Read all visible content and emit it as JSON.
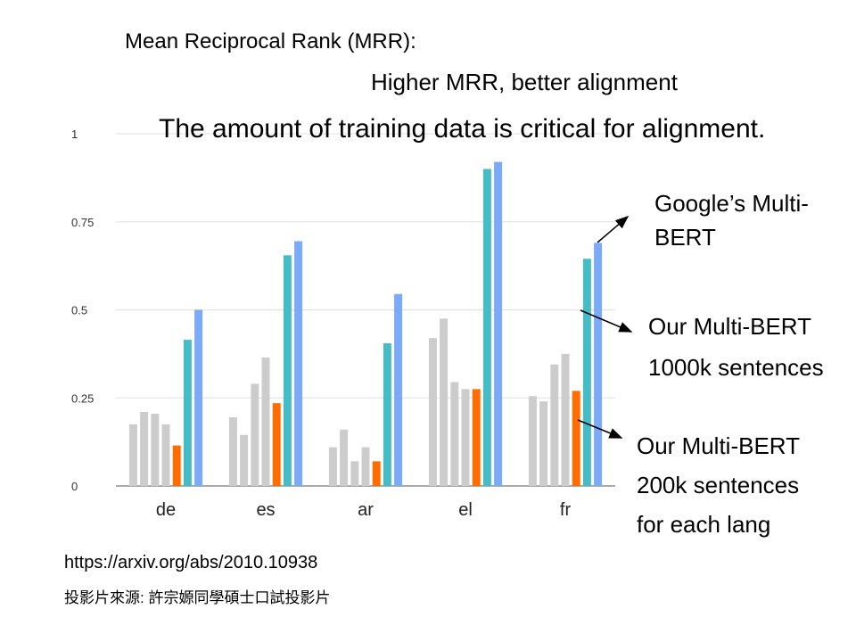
{
  "title": "Mean Reciprocal Rank (MRR):",
  "subtitle": "Higher MRR, better alignment",
  "headline": "The amount of training data is critical for alignment.",
  "annotations": {
    "google": [
      "Google’s Multi-",
      "BERT"
    ],
    "our_1000k": [
      "Our Multi-BERT",
      "1000k sentences"
    ],
    "our_200k": [
      "Our Multi-BERT",
      "200k sentences",
      "for each lang"
    ]
  },
  "source": {
    "url": "https://arxiv.org/abs/2010.10938",
    "credit": "投影片來源: 許宗嫄同學碩士口試投影片"
  },
  "colors": {
    "gray": "#cccccc",
    "our_200k": "#ff6d01",
    "our_1000k": "#46bdc6",
    "google": "#7baaf7",
    "grid": "#e0e0e0",
    "axis": "#777777"
  },
  "chart_data": {
    "type": "bar",
    "categories": [
      "de",
      "es",
      "ar",
      "el",
      "fr"
    ],
    "ylim": [
      0,
      1
    ],
    "yticks": [
      {
        "value": 0,
        "label": "0"
      },
      {
        "value": 0.25,
        "label": "0.25"
      },
      {
        "value": 0.5,
        "label": "0.5"
      },
      {
        "value": 0.75,
        "label": "0.75"
      },
      {
        "value": 1,
        "label": "1"
      }
    ],
    "grid": true,
    "series": [
      {
        "color_key": "gray",
        "values": [
          0.175,
          0.195,
          0.11,
          0.42,
          0.255
        ]
      },
      {
        "color_key": "gray",
        "values": [
          0.21,
          0.145,
          0.16,
          0.475,
          0.24
        ]
      },
      {
        "color_key": "gray",
        "values": [
          0.205,
          0.29,
          0.07,
          0.295,
          0.345
        ]
      },
      {
        "color_key": "gray",
        "values": [
          0.175,
          0.365,
          0.11,
          0.275,
          0.375
        ]
      },
      {
        "name": "Our Multi-BERT 200k sentences for each lang",
        "color_key": "our_200k",
        "values": [
          0.115,
          0.235,
          0.07,
          0.275,
          0.27
        ]
      },
      {
        "name": "Our Multi-BERT 1000k sentences",
        "color_key": "our_1000k",
        "values": [
          0.415,
          0.655,
          0.405,
          0.9,
          0.645
        ]
      },
      {
        "name": "Google’s Multi-BERT",
        "color_key": "google",
        "values": [
          0.5,
          0.695,
          0.545,
          0.92,
          0.69
        ]
      }
    ]
  }
}
